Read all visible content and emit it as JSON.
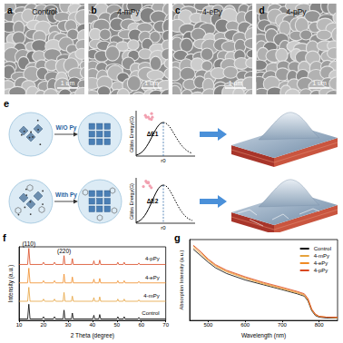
{
  "figure": {
    "sem_panels": [
      {
        "label": "a",
        "title": "Control",
        "scale_bar": "1 um"
      },
      {
        "label": "b",
        "title": "4-mPy",
        "scale_bar": "1 um"
      },
      {
        "label": "c",
        "title": "4-ePy",
        "scale_bar": "1 um"
      },
      {
        "label": "d",
        "title": "4-pPy",
        "scale_bar": "1 um"
      }
    ],
    "schematic": {
      "label": "e",
      "energy_axis": "Gibbs Energy(G)",
      "radius_axis": "r0",
      "rows": [
        {
          "condition": "W/O Py",
          "barrier": "ΔE1"
        },
        {
          "condition": "With Py",
          "barrier": "ΔE2"
        }
      ]
    },
    "chart_labels": [
      "f",
      "g"
    ]
  },
  "chart_data": [
    {
      "type": "line",
      "x_label": "2 Theta (degree)",
      "y_label": "Intensity (a.u.)",
      "x": [
        10,
        13.5,
        14,
        14.5,
        19.5,
        20,
        20.5,
        24,
        24.5,
        25,
        28,
        28.4,
        28.8,
        31.4,
        31.8,
        32.2,
        40.2,
        40.6,
        41,
        42.6,
        43,
        43.4,
        50,
        50.4,
        50.8,
        52.6,
        53,
        53.4,
        58.6,
        59,
        59.4,
        70
      ],
      "series": [
        {
          "name": "Control",
          "color": "#000000",
          "values": [
            2,
            2,
            22,
            2,
            2,
            5,
            2,
            2,
            5,
            2,
            2,
            14,
            2,
            2,
            10,
            2,
            2,
            7,
            2,
            2,
            8,
            2,
            2,
            5,
            2,
            2,
            5,
            2,
            2,
            4,
            2,
            2
          ]
        },
        {
          "name": "4-mPy",
          "color": "#e6a23c",
          "values": [
            26,
            26,
            45,
            26,
            26,
            29,
            26,
            26,
            29,
            26,
            26,
            38,
            26,
            26,
            33,
            26,
            26,
            31,
            26,
            26,
            32,
            26,
            26,
            29,
            26,
            26,
            29,
            26,
            26,
            28,
            26,
            26
          ]
        },
        {
          "name": "4-ePy",
          "color": "#f08a24",
          "values": [
            51,
            51,
            71,
            51,
            51,
            54,
            51,
            51,
            54,
            51,
            51,
            63,
            51,
            51,
            59,
            51,
            51,
            56,
            51,
            51,
            57,
            51,
            51,
            54,
            51,
            51,
            54,
            51,
            51,
            53,
            51,
            51
          ]
        },
        {
          "name": "4-pPy",
          "color": "#d9471f",
          "values": [
            76,
            76,
            98,
            76,
            76,
            79,
            76,
            76,
            79,
            76,
            76,
            88,
            76,
            76,
            84,
            76,
            76,
            81,
            76,
            76,
            82,
            76,
            76,
            79,
            76,
            76,
            79,
            76,
            76,
            78,
            76,
            76
          ]
        }
      ],
      "annotations": [
        {
          "text": "(110)",
          "x": 14
        },
        {
          "text": "(220)",
          "x": 28.4
        }
      ],
      "xlim": [
        10,
        70
      ],
      "xticks": [
        10,
        20,
        30,
        40,
        50,
        60,
        70
      ],
      "ylim": [
        0,
        100
      ],
      "tick_labels": "x",
      "grid": false
    },
    {
      "type": "line",
      "x_label": "Wavelength (nm)",
      "y_label": "Absorption Intensity (a.u.)",
      "x": [
        460,
        480,
        500,
        520,
        550,
        600,
        650,
        700,
        740,
        760,
        770,
        780,
        790,
        800,
        820,
        850
      ],
      "series": [
        {
          "name": "Control",
          "color": "#000000",
          "values": [
            0.88,
            0.8,
            0.72,
            0.65,
            0.58,
            0.5,
            0.44,
            0.38,
            0.33,
            0.3,
            0.24,
            0.12,
            0.06,
            0.04,
            0.03,
            0.03
          ]
        },
        {
          "name": "4-mPy",
          "color": "#e6a23c",
          "values": [
            0.9,
            0.82,
            0.74,
            0.67,
            0.6,
            0.52,
            0.45,
            0.39,
            0.34,
            0.31,
            0.25,
            0.13,
            0.07,
            0.05,
            0.04,
            0.03
          ]
        },
        {
          "name": "4-ePy",
          "color": "#f08a24",
          "values": [
            0.92,
            0.84,
            0.75,
            0.68,
            0.61,
            0.53,
            0.46,
            0.4,
            0.35,
            0.32,
            0.26,
            0.14,
            0.07,
            0.05,
            0.04,
            0.04
          ]
        },
        {
          "name": "4-pPy",
          "color": "#d9471f",
          "values": [
            0.93,
            0.85,
            0.76,
            0.69,
            0.62,
            0.54,
            0.47,
            0.41,
            0.36,
            0.33,
            0.27,
            0.14,
            0.08,
            0.05,
            0.04,
            0.04
          ]
        }
      ],
      "xlim": [
        450,
        850
      ],
      "xticks": [
        500,
        600,
        700,
        800
      ],
      "ylim": [
        0,
        1
      ],
      "tick_labels": "x",
      "grid": false,
      "legend": "upper right"
    }
  ]
}
